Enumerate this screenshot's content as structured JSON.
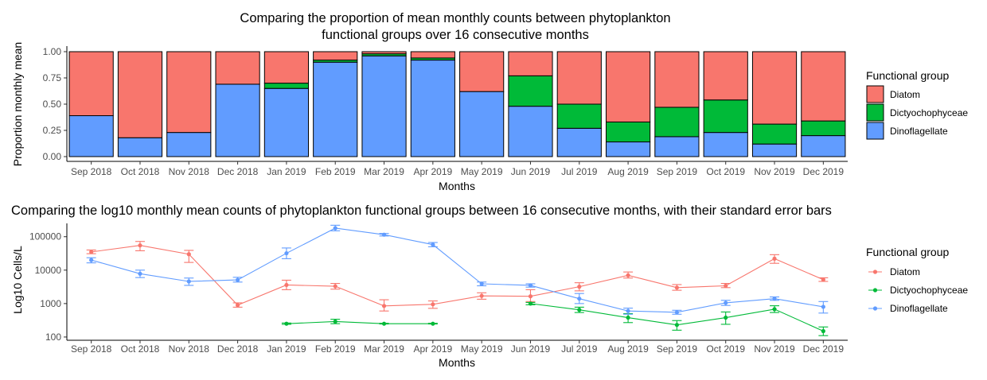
{
  "colors": {
    "Diatom": "#F8766D",
    "Dictyochophyceae": "#00BA38",
    "Dinoflagellate": "#619CFF"
  },
  "chart_data": [
    {
      "type": "bar",
      "stacked": true,
      "title_line1": "Comparing the proportion of mean monthly counts between phytoplankton",
      "title_line2": "functional groups over 16 consecutive months",
      "xlabel": "Months",
      "ylabel": "Proportion monthly mean",
      "ylim": [
        0,
        1
      ],
      "yticks": [
        "0.00",
        "0.25",
        "0.50",
        "0.75",
        "1.00"
      ],
      "categories": [
        "Sep 2018",
        "Oct 2018",
        "Nov 2018",
        "Dec 2018",
        "Jan 2019",
        "Feb 2019",
        "Mar 2019",
        "Apr 2019",
        "May 2019",
        "Jun 2019",
        "Jul 2019",
        "Aug 2019",
        "Sep 2019",
        "Oct 2019",
        "Nov 2019",
        "Dec 2019"
      ],
      "legend_title": "Functional group",
      "legend_position": "right",
      "series": [
        {
          "name": "Dinoflagellate",
          "values": [
            0.39,
            0.18,
            0.23,
            0.69,
            0.65,
            0.9,
            0.96,
            0.92,
            0.62,
            0.48,
            0.27,
            0.14,
            0.19,
            0.23,
            0.12,
            0.2
          ]
        },
        {
          "name": "Dictyochophyceae",
          "values": [
            0,
            0,
            0,
            0,
            0.05,
            0.02,
            0.02,
            0.02,
            0,
            0.29,
            0.23,
            0.19,
            0.28,
            0.31,
            0.19,
            0.14
          ]
        },
        {
          "name": "Diatom",
          "values": [
            0.61,
            0.82,
            0.77,
            0.31,
            0.3,
            0.08,
            0.02,
            0.06,
            0.38,
            0.23,
            0.5,
            0.67,
            0.53,
            0.46,
            0.69,
            0.66
          ]
        }
      ]
    },
    {
      "type": "line",
      "log_y": true,
      "title": "Comparing the log10 monthly mean counts of phytoplankton functional groups between 16 consecutive months, with their standard error bars",
      "xlabel": "Months",
      "ylabel": "Log10 Cells/L",
      "ylim": [
        80,
        250000
      ],
      "yticks": [
        "100",
        "1000",
        "10000",
        "100000"
      ],
      "categories": [
        "Sep 2018",
        "Oct 2018",
        "Nov 2018",
        "Dec 2018",
        "Jan 2019",
        "Feb 2019",
        "Mar 2019",
        "Apr 2019",
        "May 2019",
        "Jun 2019",
        "Jul 2019",
        "Aug 2019",
        "Sep 2019",
        "Oct 2019",
        "Nov 2019",
        "Dec 2019"
      ],
      "legend_title": "Functional group",
      "legend_position": "right",
      "series": [
        {
          "name": "Diatom",
          "values": [
            35000,
            55000,
            30000,
            900,
            3600,
            3300,
            850,
            950,
            1700,
            1650,
            3200,
            7000,
            3000,
            3400,
            22000,
            5200
          ],
          "lower": [
            31000,
            38000,
            17000,
            780,
            2600,
            2700,
            600,
            720,
            1350,
            1150,
            2400,
            5800,
            2500,
            3000,
            16000,
            4600
          ],
          "upper": [
            40000,
            72000,
            39000,
            1050,
            5000,
            4000,
            1300,
            1200,
            2100,
            2600,
            4200,
            8800,
            3700,
            4000,
            29000,
            5900
          ]
        },
        {
          "name": "Dictyochophyceae",
          "values": [
            null,
            null,
            null,
            null,
            250,
            290,
            250,
            250,
            null,
            1000,
            650,
            380,
            230,
            380,
            680,
            150
          ],
          "lower": [
            null,
            null,
            null,
            null,
            240,
            250,
            245,
            245,
            null,
            920,
            540,
            270,
            160,
            240,
            540,
            110
          ],
          "upper": [
            null,
            null,
            null,
            null,
            262,
            340,
            258,
            258,
            null,
            1080,
            780,
            500,
            310,
            560,
            860,
            200
          ]
        },
        {
          "name": "Dinoflagellate",
          "values": [
            20000,
            7800,
            4600,
            5100,
            32000,
            180000,
            115000,
            58000,
            3900,
            3500,
            1400,
            600,
            550,
            1050,
            1400,
            800
          ],
          "lower": [
            16500,
            6000,
            3500,
            4400,
            22000,
            150000,
            105000,
            50000,
            3400,
            3100,
            1000,
            480,
            480,
            880,
            1250,
            520
          ],
          "upper": [
            23500,
            10000,
            5800,
            6100,
            46000,
            220000,
            125000,
            67000,
            4400,
            3900,
            2000,
            730,
            630,
            1250,
            1580,
            1150
          ]
        }
      ]
    }
  ]
}
